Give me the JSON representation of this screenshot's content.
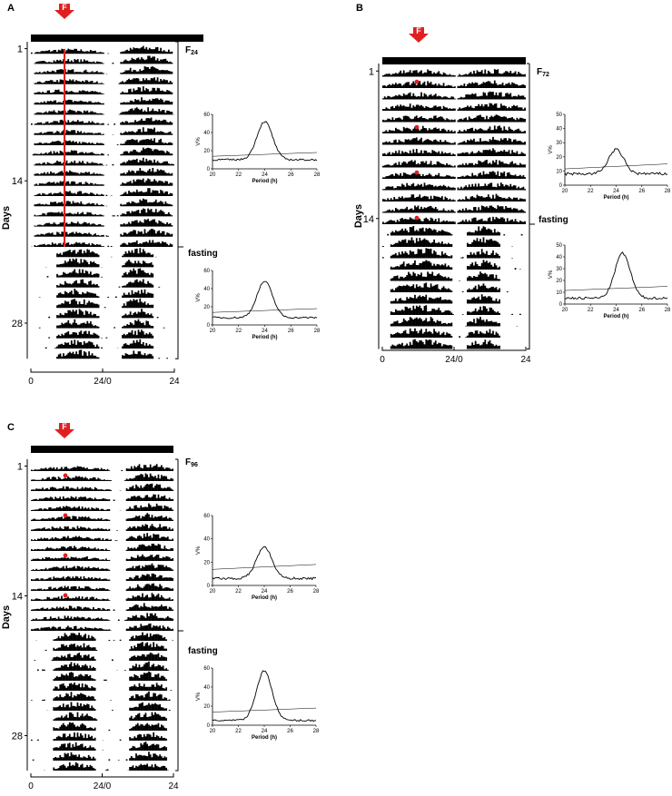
{
  "figure": {
    "arrow_letter": "F",
    "days_label": "Days",
    "fasting_label": "fasting",
    "x_axis_ticks": [
      "0",
      "24/0",
      "24"
    ],
    "periodogram": {
      "xlabel": "Period (h)",
      "ylabel": "V%",
      "x_ticks": [
        "20",
        "22",
        "24",
        "26",
        "28"
      ]
    }
  },
  "panels": [
    {
      "id": "A",
      "letter": "A",
      "tag_main": "F",
      "tag_sub": "24",
      "day_ticks": [
        "1",
        "14",
        "28"
      ],
      "days_total": 31,
      "fasting_after_day": 20,
      "feeding_marker": "line",
      "periodograms": [
        {
          "y_ticks": [
            "0",
            "20",
            "40",
            "60"
          ],
          "ymax": 60,
          "peak_period": 24.0,
          "peak": 52,
          "base": 10
        },
        {
          "y_ticks": [
            "0",
            "20",
            "40",
            "60"
          ],
          "ymax": 60,
          "peak_period": 24.0,
          "peak": 48,
          "base": 8
        }
      ]
    },
    {
      "id": "B",
      "letter": "B",
      "tag_main": "F",
      "tag_sub": "72",
      "day_ticks": [
        "1",
        "14"
      ],
      "days_total": 25,
      "fasting_after_day": 14,
      "feeding_marker": "dots",
      "periodograms": [
        {
          "y_ticks": [
            "0",
            "10",
            "20",
            "30",
            "40",
            "50"
          ],
          "ymax": 50,
          "peak_period": 24.0,
          "peak": 25,
          "base": 8
        },
        {
          "y_ticks": [
            "0",
            "10",
            "20",
            "30",
            "40",
            "50"
          ],
          "ymax": 50,
          "peak_period": 24.5,
          "peak": 43,
          "base": 5
        }
      ]
    },
    {
      "id": "C",
      "letter": "C",
      "tag_main": "F",
      "tag_sub": "96",
      "day_ticks": [
        "1",
        "14",
        "28"
      ],
      "days_total": 31,
      "fasting_after_day": 17,
      "feeding_marker": "dots",
      "periodograms": [
        {
          "y_ticks": [
            "0",
            "20",
            "40",
            "60"
          ],
          "ymax": 60,
          "peak_period": 24.0,
          "peak": 33,
          "base": 6
        },
        {
          "y_ticks": [
            "0",
            "20",
            "40",
            "60"
          ],
          "ymax": 60,
          "peak_period": 24.0,
          "peak": 57,
          "base": 5
        }
      ]
    }
  ],
  "colors": {
    "marker": "#e02020",
    "ink": "#000000"
  }
}
